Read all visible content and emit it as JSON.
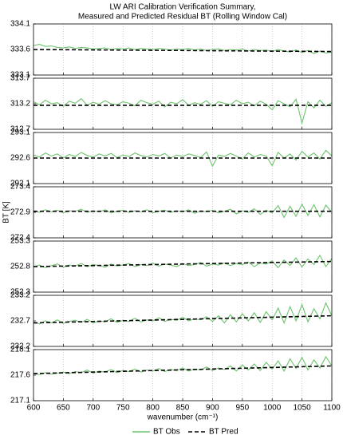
{
  "chart_data": [
    {
      "type": "line",
      "title": [
        "LW ARI Calibration Verification Summary,",
        "Measured and Predicted Residual BT (Rolling Window Cal)"
      ],
      "legend": "bottom",
      "grid": "x",
      "xlim": [
        600,
        1100
      ],
      "xticks": [
        600,
        650,
        700,
        750,
        800,
        850,
        900,
        950,
        1000,
        1050,
        1100
      ],
      "ylim": [
        333.1,
        334.1
      ],
      "yticks": [
        333.1,
        333.6,
        334.1
      ],
      "x": [
        600,
        610,
        620,
        630,
        640,
        650,
        660,
        670,
        680,
        690,
        700,
        710,
        720,
        730,
        740,
        750,
        760,
        770,
        780,
        790,
        800,
        810,
        820,
        830,
        840,
        850,
        860,
        870,
        880,
        890,
        900,
        910,
        920,
        930,
        940,
        950,
        960,
        970,
        980,
        990,
        1000,
        1010,
        1020,
        1030,
        1040,
        1050,
        1060,
        1070,
        1080,
        1090,
        1100
      ],
      "series": [
        {
          "name": "BT Obs",
          "color": "#6cc46c",
          "style": "solid",
          "values": [
            333.68,
            333.7,
            333.66,
            333.67,
            333.64,
            333.63,
            333.65,
            333.62,
            333.64,
            333.63,
            333.61,
            333.62,
            333.63,
            333.6,
            333.62,
            333.61,
            333.63,
            333.6,
            333.62,
            333.61,
            333.6,
            333.62,
            333.61,
            333.59,
            333.61,
            333.6,
            333.62,
            333.59,
            333.61,
            333.58,
            333.6,
            333.61,
            333.58,
            333.6,
            333.59,
            333.61,
            333.57,
            333.6,
            333.58,
            333.59,
            333.56,
            333.6,
            333.57,
            333.55,
            333.59,
            333.54,
            333.58,
            333.52,
            333.57,
            333.53,
            333.55
          ]
        },
        {
          "name": "BT Pred",
          "color": "#000000",
          "style": "dashed",
          "x": [
            600,
            1100
          ],
          "values": [
            333.6,
            333.56
          ]
        }
      ]
    },
    {
      "type": "line",
      "grid": "x",
      "xlim": [
        600,
        1100
      ],
      "xticks": [
        600,
        650,
        700,
        750,
        800,
        850,
        900,
        950,
        1000,
        1050,
        1100
      ],
      "ylim": [
        312.7,
        313.7
      ],
      "yticks": [
        312.7,
        313.2,
        313.7
      ],
      "x": [
        600,
        610,
        620,
        630,
        640,
        650,
        660,
        670,
        680,
        690,
        700,
        710,
        720,
        730,
        740,
        750,
        760,
        770,
        780,
        790,
        800,
        810,
        820,
        830,
        840,
        850,
        860,
        870,
        880,
        890,
        900,
        910,
        920,
        930,
        940,
        950,
        960,
        970,
        980,
        990,
        1000,
        1010,
        1020,
        1030,
        1040,
        1050,
        1060,
        1070,
        1080,
        1090,
        1100
      ],
      "series": [
        {
          "color": "#6cc46c",
          "style": "solid",
          "values": [
            313.24,
            313.18,
            313.27,
            313.2,
            313.22,
            313.15,
            313.25,
            313.21,
            313.3,
            313.17,
            313.23,
            313.19,
            313.26,
            313.2,
            313.18,
            313.24,
            313.21,
            313.16,
            313.27,
            313.22,
            313.19,
            313.25,
            313.14,
            313.23,
            313.2,
            313.28,
            313.17,
            313.22,
            313.19,
            313.26,
            313.15,
            313.24,
            313.21,
            313.18,
            313.27,
            313.2,
            313.23,
            313.16,
            313.25,
            313.19,
            313.08,
            313.26,
            313.2,
            313.14,
            313.29,
            312.82,
            313.24,
            313.12,
            313.27,
            313.15,
            313.22
          ]
        },
        {
          "color": "#000000",
          "style": "dashed",
          "x": [
            600,
            1100
          ],
          "values": [
            313.17,
            313.17
          ]
        }
      ]
    },
    {
      "type": "line",
      "grid": "x",
      "xlim": [
        600,
        1100
      ],
      "xticks": [
        600,
        650,
        700,
        750,
        800,
        850,
        900,
        950,
        1000,
        1050,
        1100
      ],
      "ylim": [
        292.1,
        293.1
      ],
      "yticks": [
        292.1,
        292.6,
        293.1
      ],
      "x": [
        600,
        610,
        620,
        630,
        640,
        650,
        660,
        670,
        680,
        690,
        700,
        710,
        720,
        730,
        740,
        750,
        760,
        770,
        780,
        790,
        800,
        810,
        820,
        830,
        840,
        850,
        860,
        870,
        880,
        890,
        900,
        910,
        920,
        930,
        940,
        950,
        960,
        970,
        980,
        990,
        1000,
        1010,
        1020,
        1030,
        1040,
        1050,
        1060,
        1070,
        1080,
        1090,
        1100
      ],
      "series": [
        {
          "color": "#6cc46c",
          "style": "solid",
          "values": [
            292.66,
            292.62,
            292.7,
            292.64,
            292.68,
            292.6,
            292.67,
            292.63,
            292.71,
            292.65,
            292.62,
            292.68,
            292.64,
            292.69,
            292.61,
            292.66,
            292.63,
            292.7,
            292.65,
            292.62,
            292.67,
            292.64,
            292.69,
            292.6,
            292.66,
            292.63,
            292.68,
            292.65,
            292.61,
            292.72,
            292.44,
            292.66,
            292.63,
            292.69,
            292.64,
            292.58,
            292.7,
            292.62,
            292.67,
            292.64,
            292.45,
            292.71,
            292.6,
            292.68,
            292.56,
            292.73,
            292.62,
            292.7,
            292.58,
            292.75,
            292.64
          ]
        },
        {
          "color": "#000000",
          "style": "dashed",
          "x": [
            600,
            1100
          ],
          "values": [
            292.6,
            292.6
          ]
        }
      ]
    },
    {
      "type": "line",
      "ylabel": "BT [K]",
      "grid": "x",
      "xlim": [
        600,
        1100
      ],
      "xticks": [
        600,
        650,
        700,
        750,
        800,
        850,
        900,
        950,
        1000,
        1050,
        1100
      ],
      "ylim": [
        272.4,
        273.4
      ],
      "yticks": [
        272.4,
        272.9,
        273.4
      ],
      "x": [
        600,
        610,
        620,
        630,
        640,
        650,
        660,
        670,
        680,
        690,
        700,
        710,
        720,
        730,
        740,
        750,
        760,
        770,
        780,
        790,
        800,
        810,
        820,
        830,
        840,
        850,
        860,
        870,
        880,
        890,
        900,
        910,
        920,
        930,
        940,
        950,
        960,
        970,
        980,
        990,
        1000,
        1010,
        1020,
        1030,
        1040,
        1050,
        1060,
        1070,
        1080,
        1090,
        1100
      ],
      "series": [
        {
          "color": "#6cc46c",
          "style": "solid",
          "values": [
            272.93,
            272.9,
            272.95,
            272.91,
            272.94,
            272.89,
            272.93,
            272.92,
            272.96,
            272.9,
            272.93,
            272.91,
            272.95,
            272.89,
            272.92,
            272.94,
            272.9,
            272.93,
            272.91,
            272.95,
            272.89,
            272.92,
            272.94,
            272.9,
            272.93,
            272.91,
            272.95,
            272.88,
            272.93,
            272.91,
            272.94,
            272.89,
            272.92,
            272.96,
            272.87,
            272.93,
            272.9,
            272.97,
            272.86,
            272.94,
            272.89,
            273.03,
            272.8,
            273.02,
            272.82,
            273.06,
            272.84,
            273.05,
            272.81,
            273.04,
            272.9
          ]
        },
        {
          "color": "#000000",
          "style": "dashed",
          "x": [
            600,
            1100
          ],
          "values": [
            272.92,
            272.92
          ]
        }
      ]
    },
    {
      "type": "line",
      "grid": "x",
      "xlim": [
        600,
        1100
      ],
      "xticks": [
        600,
        650,
        700,
        750,
        800,
        850,
        900,
        950,
        1000,
        1050,
        1100
      ],
      "ylim": [
        252.3,
        253.3
      ],
      "yticks": [
        252.3,
        252.8,
        253.3
      ],
      "x": [
        600,
        610,
        620,
        630,
        640,
        650,
        660,
        670,
        680,
        690,
        700,
        710,
        720,
        730,
        740,
        750,
        760,
        770,
        780,
        790,
        800,
        810,
        820,
        830,
        840,
        850,
        860,
        870,
        880,
        890,
        900,
        910,
        920,
        930,
        940,
        950,
        960,
        970,
        980,
        990,
        1000,
        1010,
        1020,
        1030,
        1040,
        1050,
        1060,
        1070,
        1080,
        1090,
        1100
      ],
      "series": [
        {
          "color": "#6cc46c",
          "style": "solid",
          "values": [
            252.8,
            252.83,
            252.78,
            252.82,
            252.85,
            252.79,
            252.83,
            252.81,
            252.86,
            252.8,
            252.84,
            252.82,
            252.79,
            252.85,
            252.81,
            252.83,
            252.86,
            252.8,
            252.84,
            252.82,
            252.87,
            252.81,
            252.85,
            252.83,
            252.8,
            252.86,
            252.82,
            252.84,
            252.88,
            252.81,
            252.85,
            252.83,
            252.87,
            252.82,
            252.86,
            252.84,
            252.89,
            252.8,
            252.87,
            252.85,
            252.91,
            252.78,
            252.93,
            252.82,
            252.97,
            252.79,
            252.95,
            252.84,
            253.02,
            252.8,
            252.96
          ]
        },
        {
          "color": "#000000",
          "style": "dashed",
          "x": [
            600,
            1100
          ],
          "values": [
            252.8,
            252.9
          ]
        }
      ]
    },
    {
      "type": "line",
      "grid": "x",
      "xlim": [
        600,
        1100
      ],
      "xticks": [
        600,
        650,
        700,
        750,
        800,
        850,
        900,
        950,
        1000,
        1050,
        1100
      ],
      "ylim": [
        232.2,
        233.2
      ],
      "yticks": [
        232.2,
        232.7,
        233.2
      ],
      "x": [
        600,
        610,
        620,
        630,
        640,
        650,
        660,
        670,
        680,
        690,
        700,
        710,
        720,
        730,
        740,
        750,
        760,
        770,
        780,
        790,
        800,
        810,
        820,
        830,
        840,
        850,
        860,
        870,
        880,
        890,
        900,
        910,
        920,
        930,
        940,
        950,
        960,
        970,
        980,
        990,
        1000,
        1010,
        1020,
        1030,
        1040,
        1050,
        1060,
        1070,
        1080,
        1090,
        1100
      ],
      "series": [
        {
          "color": "#6cc46c",
          "style": "solid",
          "values": [
            232.68,
            232.64,
            232.7,
            232.66,
            232.72,
            232.65,
            232.69,
            232.71,
            232.67,
            232.73,
            232.66,
            232.7,
            232.68,
            232.74,
            232.67,
            232.71,
            232.69,
            232.75,
            232.68,
            232.72,
            232.7,
            232.76,
            232.69,
            232.73,
            232.71,
            232.77,
            232.7,
            232.74,
            232.72,
            232.78,
            232.69,
            232.8,
            232.66,
            232.82,
            232.68,
            232.84,
            232.7,
            232.86,
            232.67,
            232.88,
            232.72,
            232.95,
            232.66,
            232.98,
            232.7,
            233.02,
            232.68,
            232.94,
            232.74,
            233.05,
            232.8
          ]
        },
        {
          "color": "#000000",
          "style": "dashed",
          "x": [
            600,
            1100
          ],
          "values": [
            232.66,
            232.8
          ]
        }
      ]
    },
    {
      "type": "line",
      "xlabel": "wavenumber (cm⁻¹)",
      "grid": "x",
      "xlim": [
        600,
        1100
      ],
      "xticks": [
        600,
        650,
        700,
        750,
        800,
        850,
        900,
        950,
        1000,
        1050,
        1100
      ],
      "ylim": [
        217.1,
        218.1
      ],
      "yticks": [
        217.1,
        217.6,
        218.1
      ],
      "x": [
        600,
        610,
        620,
        630,
        640,
        650,
        660,
        670,
        680,
        690,
        700,
        710,
        720,
        730,
        740,
        750,
        760,
        770,
        780,
        790,
        800,
        810,
        820,
        830,
        840,
        850,
        860,
        870,
        880,
        890,
        900,
        910,
        920,
        930,
        940,
        950,
        960,
        970,
        980,
        990,
        1000,
        1010,
        1020,
        1030,
        1040,
        1050,
        1060,
        1070,
        1080,
        1090,
        1100
      ],
      "series": [
        {
          "color": "#6cc46c",
          "style": "solid",
          "values": [
            217.63,
            217.61,
            217.65,
            217.62,
            217.64,
            217.66,
            217.63,
            217.67,
            217.65,
            217.7,
            217.64,
            217.68,
            217.66,
            217.71,
            217.65,
            217.69,
            217.67,
            217.72,
            217.66,
            217.7,
            217.68,
            217.73,
            217.67,
            217.71,
            217.69,
            217.74,
            217.68,
            217.72,
            217.7,
            217.76,
            217.69,
            217.74,
            217.71,
            217.78,
            217.68,
            217.8,
            217.7,
            217.82,
            217.69,
            217.85,
            217.72,
            217.88,
            217.68,
            217.92,
            217.73,
            217.95,
            217.7,
            217.9,
            217.74,
            217.96,
            217.78
          ]
        },
        {
          "color": "#000000",
          "style": "dashed",
          "x": [
            600,
            1100
          ],
          "values": [
            217.63,
            217.78
          ]
        }
      ]
    }
  ]
}
